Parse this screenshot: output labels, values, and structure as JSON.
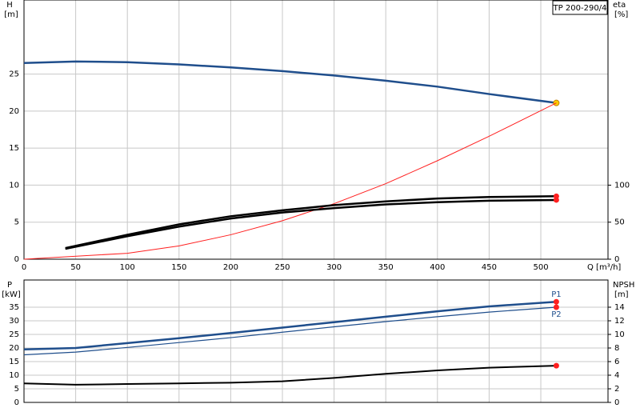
{
  "chart_data": [
    {
      "type": "line",
      "title": "TP 200-290/4",
      "ylabel": "H",
      "yunit": "[m]",
      "y2label": "eta",
      "y2unit": "[%]",
      "xlabel": "Q [m³/h]",
      "xlim": [
        0,
        565
      ],
      "xticks": [
        0,
        50,
        100,
        150,
        200,
        250,
        300,
        350,
        400,
        450,
        500
      ],
      "ylim": [
        0,
        35
      ],
      "yticks": [
        0,
        5,
        10,
        15,
        20,
        25
      ],
      "y2lim": [
        0,
        350
      ],
      "y2ticks": [
        0,
        50,
        100
      ],
      "grid": true,
      "series": [
        {
          "color": "#1f4e8c",
          "line_width": 2.5,
          "marker": "#ffcc00",
          "x": [
            0,
            50,
            100,
            150,
            200,
            250,
            300,
            350,
            400,
            450,
            515
          ],
          "values": [
            26.5,
            26.7,
            26.6,
            26.3,
            25.9,
            25.4,
            24.8,
            24.1,
            23.3,
            22.3,
            21.1
          ]
        },
        {
          "color": "#ff2020",
          "line_width": 1,
          "x": [
            0,
            100,
            150,
            200,
            250,
            300,
            350,
            400,
            450,
            515
          ],
          "values": [
            0,
            0.8,
            1.8,
            3.3,
            5.2,
            7.5,
            10.2,
            13.3,
            16.6,
            21.1
          ]
        },
        {
          "color": "#000000",
          "line_width": 2.5,
          "marker": "#ff2020",
          "axis": "y2",
          "x": [
            40,
            100,
            150,
            200,
            250,
            300,
            350,
            400,
            450,
            515
          ],
          "values": [
            15,
            33,
            47,
            58,
            66,
            73,
            78,
            82,
            84,
            85
          ]
        },
        {
          "color": "#000000",
          "line_width": 2.5,
          "marker": "#ff2020",
          "axis": "y2",
          "x": [
            40,
            100,
            150,
            200,
            250,
            300,
            350,
            400,
            450,
            515
          ],
          "values": [
            14,
            31,
            44,
            55,
            63,
            69,
            74,
            77,
            79,
            80
          ]
        }
      ]
    },
    {
      "type": "line",
      "ylabel": "P",
      "yunit": "[kW]",
      "y2label": "NPSH",
      "y2unit": "[m]",
      "xlim": [
        0,
        565
      ],
      "ylim": [
        0,
        45
      ],
      "yticks": [
        0,
        5,
        10,
        15,
        20,
        25,
        30,
        35
      ],
      "y2lim": [
        0,
        18
      ],
      "y2ticks": [
        0,
        2,
        4,
        6,
        8,
        10,
        12,
        14
      ],
      "grid": true,
      "series": [
        {
          "name": "P1",
          "color": "#1f4e8c",
          "line_width": 2.5,
          "marker": "#ff2020",
          "x": [
            0,
            50,
            100,
            150,
            200,
            250,
            300,
            350,
            400,
            450,
            515
          ],
          "values": [
            19.5,
            20,
            21.8,
            23.6,
            25.5,
            27.5,
            29.5,
            31.5,
            33.5,
            35.3,
            37
          ]
        },
        {
          "name": "P2",
          "color": "#1f4e8c",
          "line_width": 1.2,
          "marker": "#ff2020",
          "x": [
            0,
            50,
            100,
            150,
            200,
            250,
            300,
            350,
            400,
            450,
            515
          ],
          "values": [
            17.5,
            18.5,
            20.2,
            22,
            23.8,
            25.8,
            27.8,
            29.7,
            31.5,
            33.2,
            35
          ]
        },
        {
          "color": "#000000",
          "line_width": 2,
          "marker": "#ff2020",
          "axis": "y2",
          "x": [
            0,
            50,
            100,
            150,
            200,
            250,
            300,
            350,
            400,
            450,
            515
          ],
          "values": [
            2.8,
            2.6,
            2.7,
            2.8,
            2.9,
            3.1,
            3.6,
            4.2,
            4.7,
            5.1,
            5.4
          ]
        }
      ]
    }
  ]
}
